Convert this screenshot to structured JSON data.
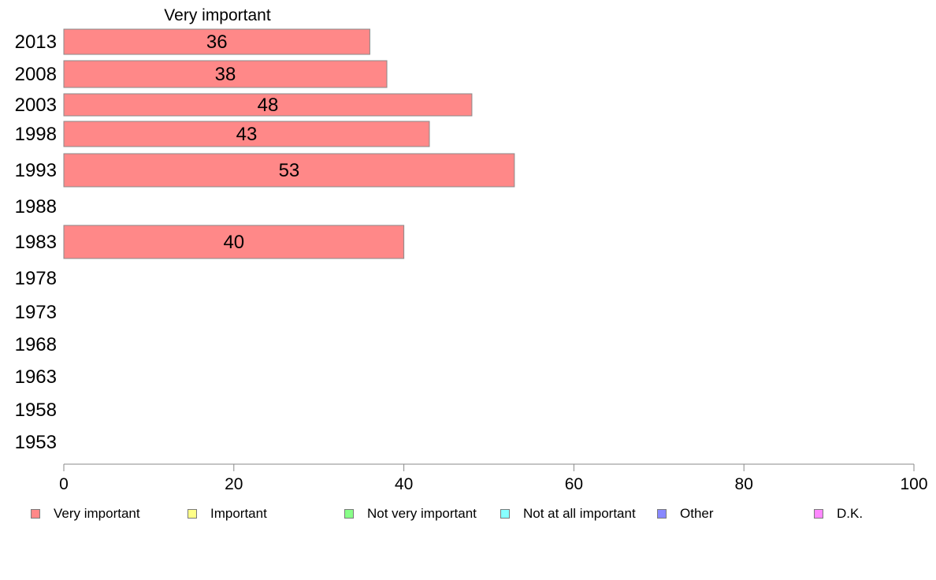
{
  "chart_data": {
    "type": "bar",
    "orientation": "horizontal",
    "title": "Very important",
    "categories": [
      "2013",
      "2008",
      "2003",
      "1998",
      "1993",
      "1988",
      "1983",
      "1978",
      "1973",
      "1968",
      "1963",
      "1958",
      "1953"
    ],
    "series": [
      {
        "name": "Very important",
        "color": "#ff8888",
        "values": [
          36,
          38,
          48,
          43,
          53,
          null,
          40,
          null,
          null,
          null,
          null,
          null,
          null
        ]
      }
    ],
    "data_labels": [
      "36",
      "38",
      "48",
      "43",
      "53",
      "",
      "40",
      "",
      "",
      "",
      "",
      "",
      ""
    ],
    "xlim": [
      0,
      100
    ],
    "xticks": [
      0,
      20,
      40,
      60,
      80,
      100
    ],
    "grid": false,
    "legend_position": "bottom"
  },
  "legend": [
    {
      "label": "Very important",
      "color": "#ff8888"
    },
    {
      "label": "Important",
      "color": "#ffff88"
    },
    {
      "label": "Not very important",
      "color": "#88ff88"
    },
    {
      "label": "Not at all important",
      "color": "#88ffff"
    },
    {
      "label": "Other",
      "color": "#8888ff"
    },
    {
      "label": "D.K.",
      "color": "#ff88ff"
    }
  ]
}
